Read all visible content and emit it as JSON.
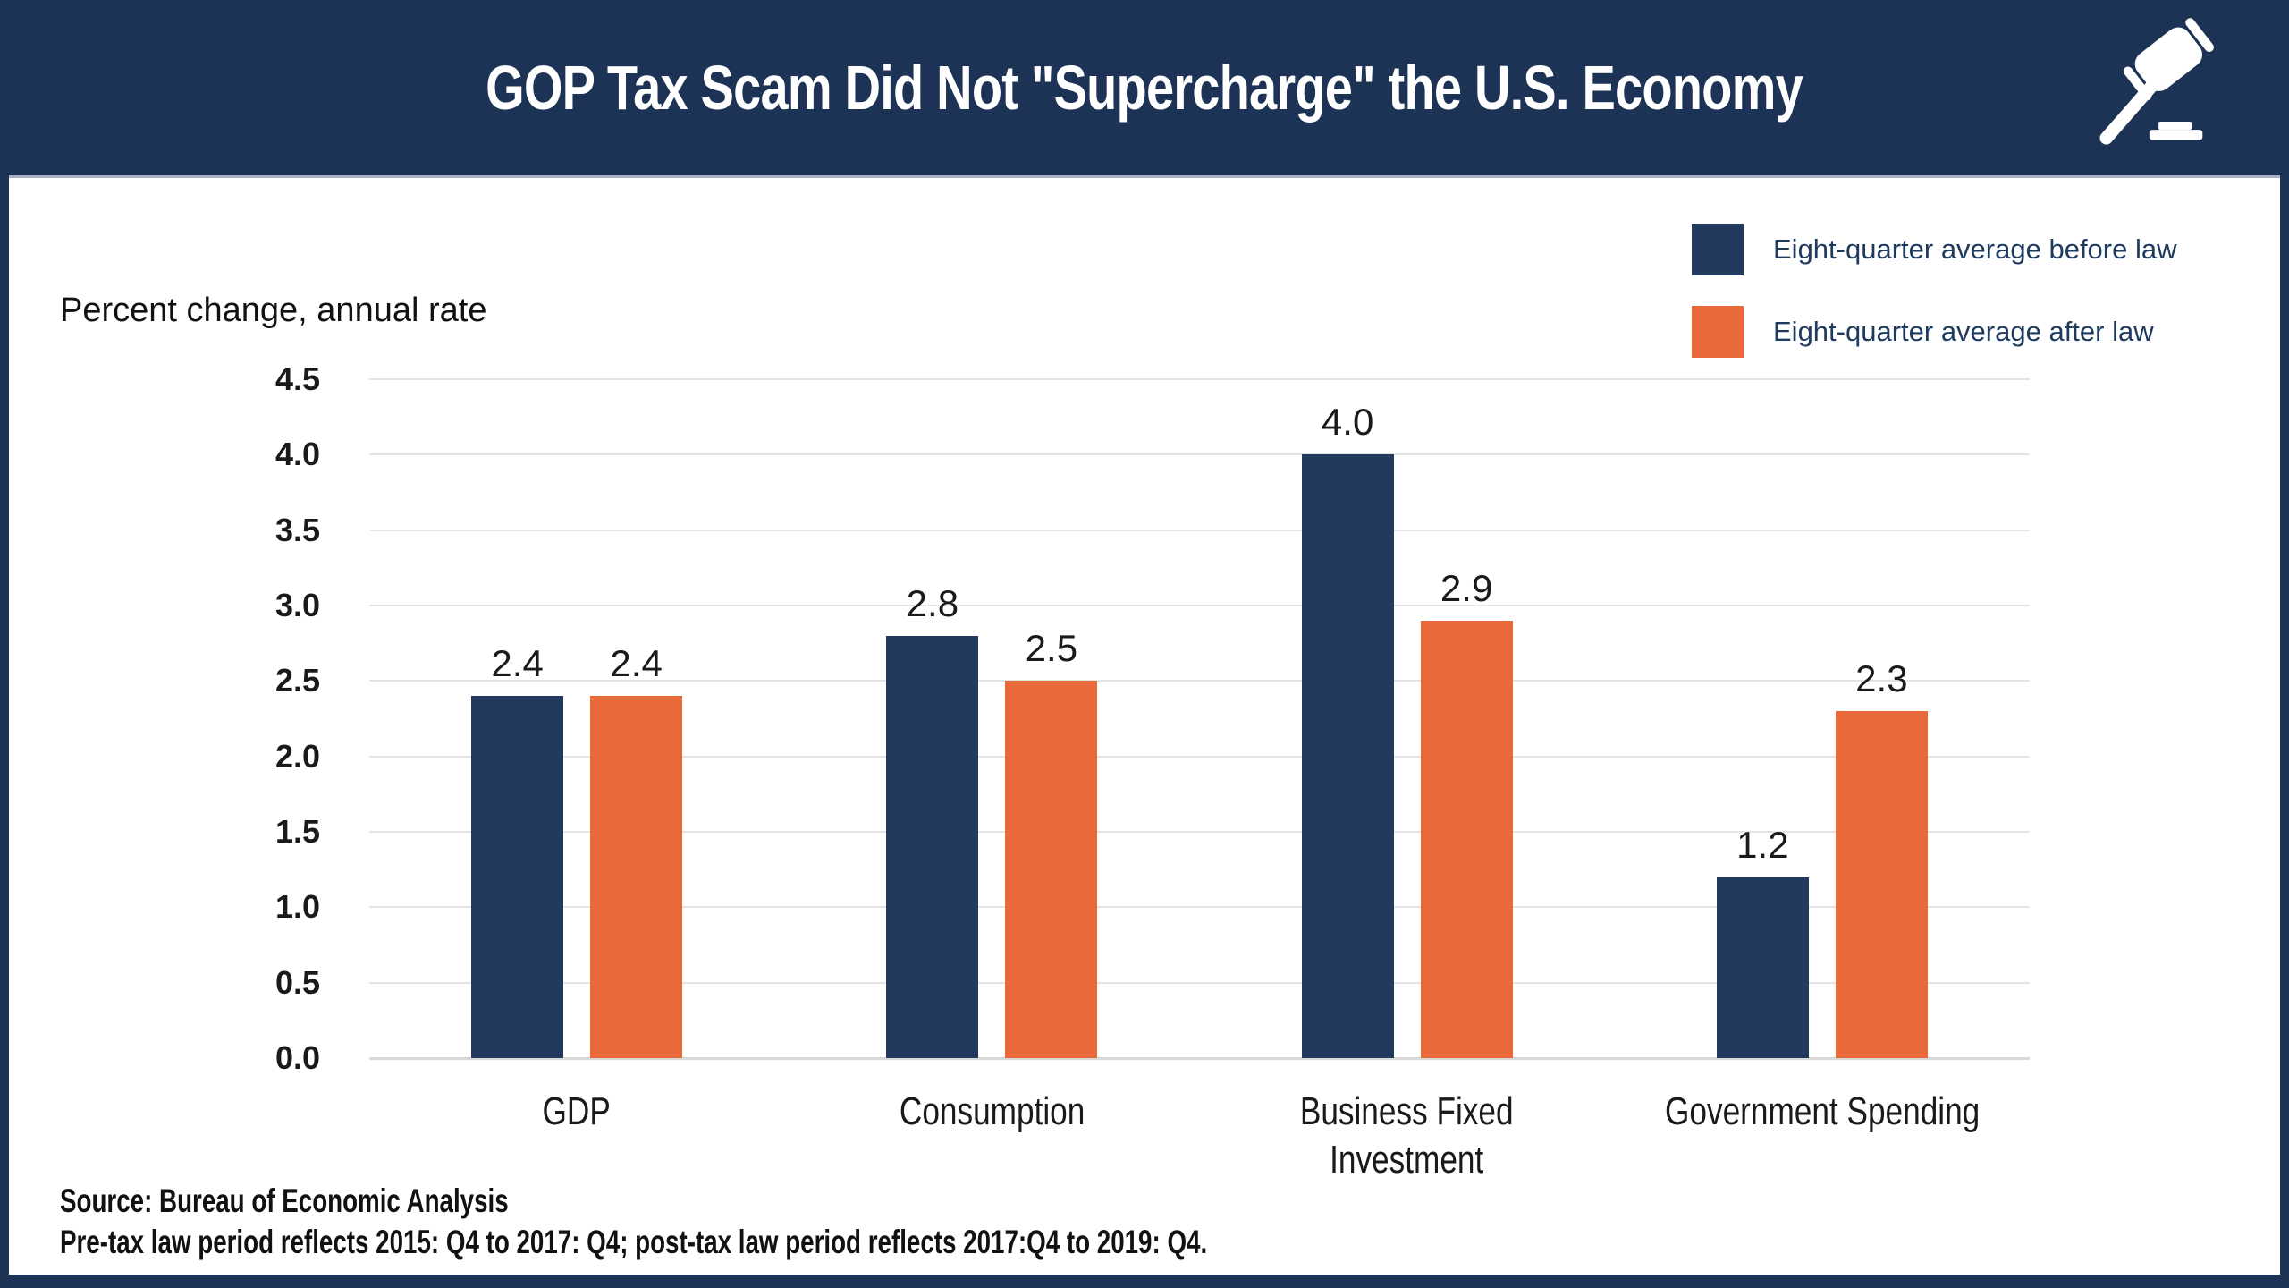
{
  "header": {
    "title": "GOP Tax Scam Did Not \"Supercharge\" the U.S. Economy",
    "icon": "gavel-icon"
  },
  "colors": {
    "frame_navy": "#1d3355",
    "bar_navy": "#213a5e",
    "bar_orange": "#e8693a",
    "legend_text": "#1f3a5f",
    "gridline": "#e4e4e4",
    "header_divider": "#a7b1c3",
    "text_dark": "#1a1a1a"
  },
  "legend": {
    "items": [
      {
        "label": "Eight-quarter average before law",
        "color": "#213a5e"
      },
      {
        "label": "Eight-quarter average after law",
        "color": "#e8693a"
      }
    ]
  },
  "axis_note": "Percent change, annual rate",
  "chart_data": {
    "type": "bar",
    "title": "GOP Tax Scam Did Not \"Supercharge\" the U.S. Economy",
    "ylabel": "Percent change, annual rate",
    "xlabel": "",
    "categories": [
      "GDP",
      "Consumption",
      "Business Fixed\nInvestment",
      "Government Spending"
    ],
    "series": [
      {
        "name": "Eight-quarter average before law",
        "color": "#213a5e",
        "values": [
          2.4,
          2.8,
          4.0,
          1.2
        ]
      },
      {
        "name": "Eight-quarter average after law",
        "color": "#e8693a",
        "values": [
          2.4,
          2.5,
          2.9,
          2.3
        ]
      }
    ],
    "ylim": [
      0,
      4.5
    ],
    "ytick_step": 0.5,
    "ytick_labels": [
      "0.0",
      "0.5",
      "1.0",
      "1.5",
      "2.0",
      "2.5",
      "3.0",
      "3.5",
      "4.0",
      "4.5"
    ],
    "grid": true,
    "legend_position": "top-right",
    "value_labels": true
  },
  "footer": {
    "source": "Source: Bureau of Economic Analysis",
    "note": "Pre-tax law period reflects 2015: Q4 to 2017: Q4; post-tax law period reflects 2017:Q4 to 2019: Q4."
  }
}
